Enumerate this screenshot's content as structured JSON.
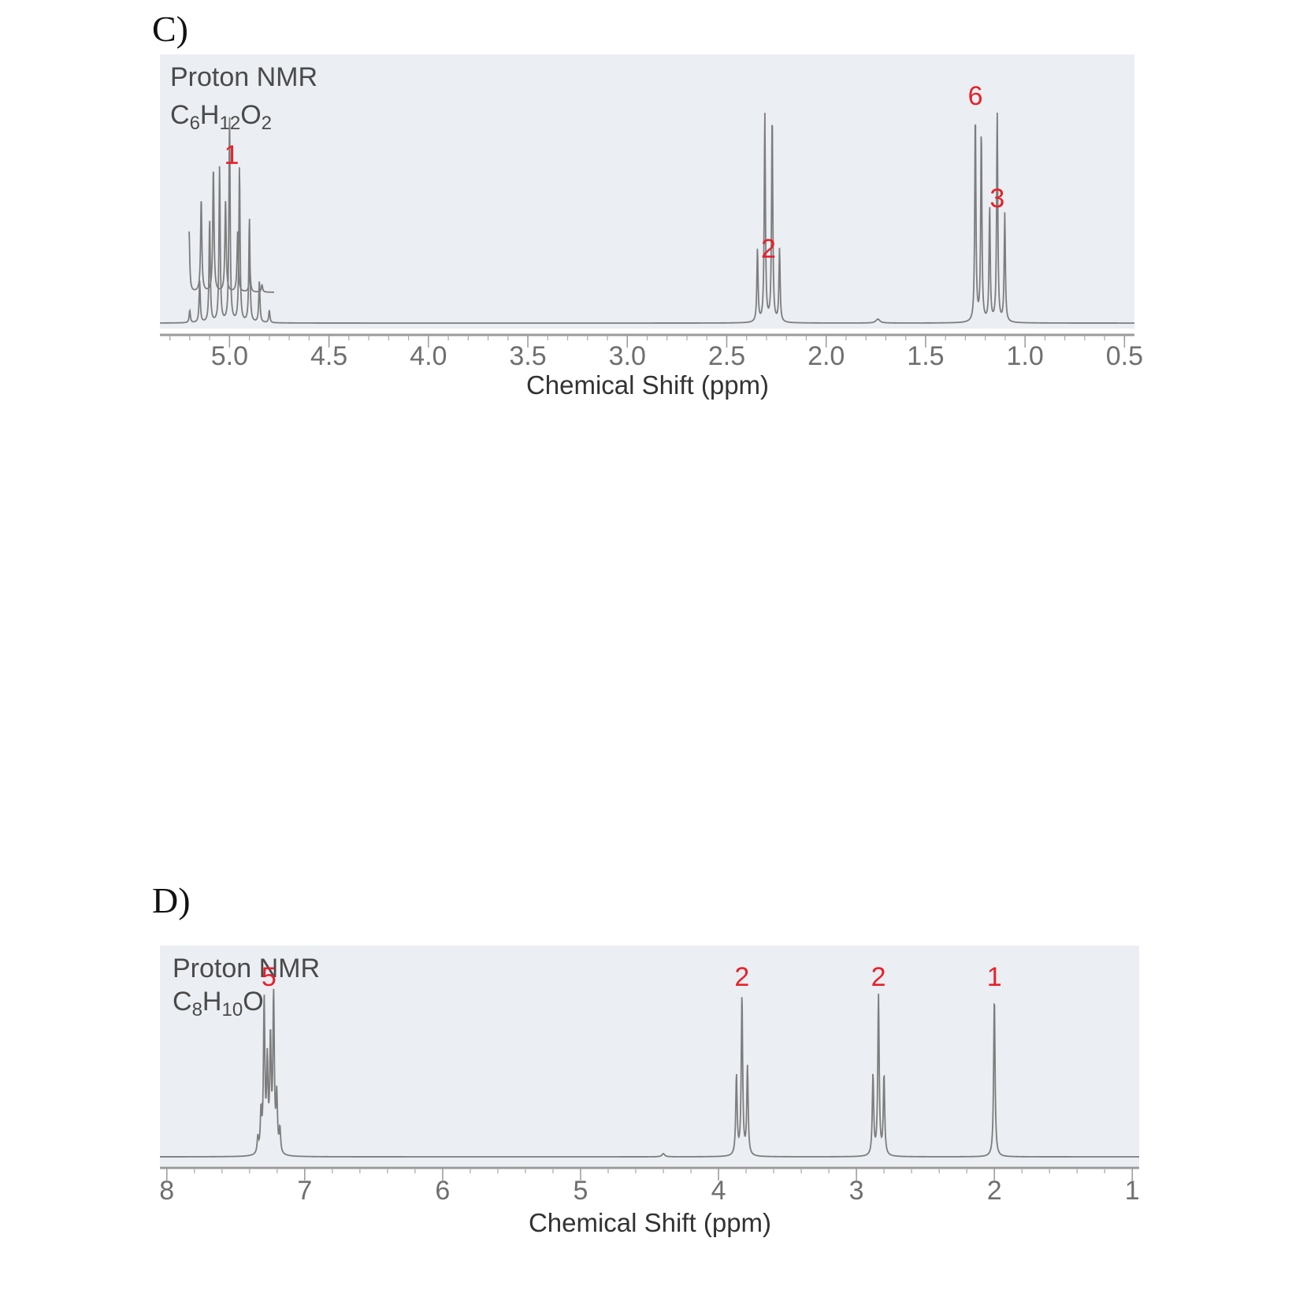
{
  "chart_data": [
    {
      "id": "C",
      "type": "line",
      "panel_label": "C)",
      "title": "Proton NMR",
      "formula": {
        "parts": [
          [
            "C",
            ""
          ],
          [
            "6",
            "sub"
          ],
          [
            "H",
            ""
          ],
          [
            "12",
            "sub"
          ],
          [
            "O",
            ""
          ],
          [
            "2",
            "sub"
          ]
        ]
      },
      "xlabel": "Chemical Shift (ppm)",
      "xlim": [
        5.35,
        0.45
      ],
      "x_ticks": [
        "5.0",
        "4.5",
        "4.0",
        "3.5",
        "3.0",
        "2.5",
        "2.0",
        "1.5",
        "1.0",
        "0.5"
      ],
      "x_tick_values": [
        5.0,
        4.5,
        4.0,
        3.5,
        3.0,
        2.5,
        2.0,
        1.5,
        1.0,
        0.5
      ],
      "grid": false,
      "peaks": [
        {
          "shift": 5.0,
          "integration": "1",
          "multiplicity": "septet",
          "J": 0.05,
          "lines": [
            0.06,
            0.2,
            0.5,
            0.75,
            1.0,
            0.75,
            0.5,
            0.2,
            0.06
          ]
        },
        {
          "shift": 2.29,
          "integration": "2",
          "multiplicity": "quartet",
          "J": 0.037,
          "lines": [
            0.35,
            1.0,
            1.0,
            0.35
          ]
        },
        {
          "shift": 1.74,
          "integration": "",
          "multiplicity": "singlet",
          "lines": [
            1.0
          ],
          "height": 5
        },
        {
          "shift": 1.235,
          "integration": "6",
          "multiplicity": "doublet",
          "J": 0.03,
          "lines": [
            1.0,
            0.92
          ]
        },
        {
          "shift": 1.14,
          "integration": "3",
          "multiplicity": "triplet",
          "J": 0.038,
          "lines": [
            0.55,
            1.0,
            0.52
          ]
        }
      ],
      "inset": {
        "range": [
          5.1,
          4.75
        ],
        "label": "1"
      }
    },
    {
      "id": "D",
      "type": "line",
      "panel_label": "D)",
      "title": "Proton NMR",
      "formula": {
        "parts": [
          [
            "C",
            ""
          ],
          [
            "8",
            "sub"
          ],
          [
            "H",
            ""
          ],
          [
            "10",
            "sub"
          ],
          [
            "O",
            ""
          ]
        ]
      },
      "xlabel": "Chemical Shift (ppm)",
      "xlim": [
        8.05,
        0.95
      ],
      "x_ticks": [
        "8",
        "7",
        "6",
        "5",
        "4",
        "3",
        "2",
        "1"
      ],
      "x_tick_values": [
        8,
        7,
        6,
        5,
        4,
        3,
        2,
        1
      ],
      "grid": false,
      "peaks": [
        {
          "shift": 7.26,
          "integration": "5",
          "multiplicity": "multiplet",
          "lines": [
            0.1,
            0.25,
            0.95,
            0.55,
            0.7,
            1.0,
            0.35,
            0.15
          ]
        },
        {
          "shift": 4.4,
          "integration": "",
          "multiplicity": "singlet",
          "lines": [
            1.0
          ],
          "height": 4
        },
        {
          "shift": 3.83,
          "integration": "2",
          "multiplicity": "triplet",
          "J": 0.04,
          "lines": [
            0.5,
            1.0,
            0.55
          ]
        },
        {
          "shift": 2.84,
          "integration": "2",
          "multiplicity": "triplet",
          "J": 0.04,
          "lines": [
            0.5,
            1.0,
            0.5
          ]
        },
        {
          "shift": 2.0,
          "integration": "1",
          "multiplicity": "singlet",
          "lines": [
            1.0
          ]
        }
      ]
    }
  ]
}
